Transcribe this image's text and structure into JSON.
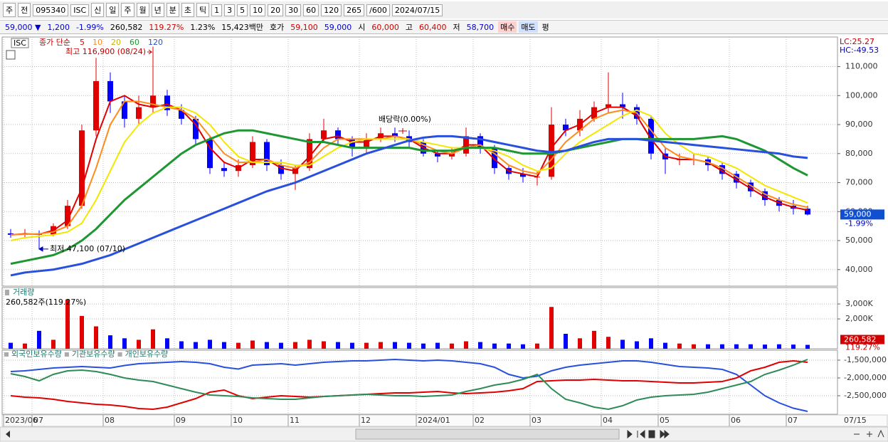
{
  "toolbar": {
    "items": [
      "주",
      "전",
      "095340",
      "ISC",
      "신",
      "일",
      "주",
      "월",
      "년",
      "분",
      "초",
      "틱",
      "1",
      "3",
      "5",
      "10",
      "20",
      "30",
      "60",
      "120",
      "265",
      "/600",
      "2024/07/15"
    ]
  },
  "quote_bar": {
    "items": [
      "59,000 ▼",
      "1,200",
      "-1.99%",
      "260,582",
      "119.27%",
      "1.23%",
      "15,423백만",
      "호가",
      "59,100",
      "59,000",
      "시",
      "60,000",
      "고",
      "60,400",
      "저",
      "58,700",
      "매수",
      "매도",
      "평"
    ]
  },
  "chart_data": [
    {
      "type": "candlestick",
      "title": "ISC",
      "legend_label": "종가 단순",
      "categories": [
        "2023/06",
        null,
        "07",
        null,
        null,
        null,
        null,
        "08",
        null,
        null,
        null,
        null,
        "09",
        null,
        null,
        null,
        "10",
        null,
        null,
        null,
        "11",
        null,
        null,
        null,
        null,
        "12",
        null,
        null,
        null,
        "2024/01",
        null,
        null,
        null,
        "02",
        null,
        null,
        null,
        "03",
        null,
        null,
        null,
        null,
        "04",
        null,
        null,
        null,
        "05",
        null,
        null,
        null,
        null,
        "06",
        null,
        null,
        null,
        "07",
        null
      ],
      "last_x_label": "07/15",
      "open": [
        52500,
        52000,
        52500,
        52000,
        55000,
        62000,
        88000,
        105000,
        98000,
        92000,
        96000,
        100000,
        95000,
        92000,
        85000,
        75000,
        74000,
        76000,
        84000,
        76000,
        73000,
        75000,
        85000,
        88000,
        85000,
        82000,
        85000,
        87000,
        86000,
        84000,
        80000,
        79000,
        80000,
        86000,
        82000,
        75000,
        73000,
        72000,
        72000,
        90000,
        88000,
        92000,
        96000,
        97000,
        96000,
        92000,
        80000,
        78000,
        78000,
        78000,
        76000,
        73000,
        70000,
        67000,
        64000,
        62000,
        61000
      ],
      "high": [
        54000,
        54000,
        53500,
        56000,
        64000,
        90000,
        113000,
        108000,
        100000,
        100000,
        116900,
        102000,
        97000,
        93000,
        86000,
        77000,
        78000,
        86000,
        85000,
        78000,
        76000,
        87000,
        92000,
        89000,
        86000,
        87000,
        89000,
        89000,
        88000,
        85000,
        81000,
        82000,
        89000,
        87000,
        83000,
        76000,
        75000,
        74000,
        96000,
        92000,
        95000,
        98000,
        108000,
        101000,
        97000,
        93000,
        82000,
        80000,
        80000,
        79000,
        77000,
        74000,
        71000,
        68000,
        65000,
        64000,
        62000
      ],
      "low": [
        51000,
        51000,
        47100,
        51500,
        54000,
        61000,
        86000,
        94000,
        89000,
        90000,
        94000,
        93000,
        90000,
        83000,
        73000,
        72000,
        72000,
        75000,
        74000,
        71000,
        67500,
        74000,
        84000,
        83000,
        79000,
        80000,
        84000,
        84000,
        82000,
        79000,
        77000,
        78000,
        79000,
        80000,
        73000,
        71000,
        70000,
        69000,
        71000,
        86000,
        86000,
        91000,
        94000,
        92000,
        90000,
        78000,
        73000,
        76000,
        76000,
        74000,
        71000,
        68000,
        65000,
        62000,
        60000,
        59000,
        58700
      ],
      "close": [
        52000,
        52500,
        52000,
        55000,
        62000,
        88000,
        105000,
        98000,
        92000,
        96000,
        100000,
        95000,
        92000,
        85000,
        75000,
        74000,
        76000,
        84000,
        76000,
        73000,
        75000,
        85000,
        88000,
        85000,
        82000,
        85000,
        87000,
        86000,
        84000,
        80000,
        79000,
        80000,
        86000,
        82000,
        75000,
        73000,
        72000,
        72000,
        90000,
        88000,
        92000,
        96000,
        97000,
        96000,
        92000,
        80000,
        78000,
        78000,
        78000,
        76000,
        73000,
        70000,
        67000,
        64000,
        62000,
        61000,
        59000
      ],
      "up_color": "#e00000",
      "down_color": "#0000ff",
      "series": [
        {
          "name": "5",
          "color": "#e00000",
          "values": [
            52000,
            52300,
            52200,
            53500,
            57000,
            68000,
            85000,
            98000,
            100000,
            97000,
            96000,
            97000,
            95000,
            90000,
            82000,
            77000,
            75000,
            78000,
            78000,
            75000,
            74000,
            79000,
            85000,
            86000,
            84000,
            84000,
            86000,
            86000,
            85000,
            82000,
            80000,
            80000,
            83000,
            83000,
            78000,
            74000,
            73000,
            72000,
            82000,
            88000,
            90000,
            94000,
            96000,
            96000,
            93000,
            85000,
            79000,
            78000,
            78000,
            77000,
            74000,
            71000,
            68000,
            65000,
            63000,
            61500,
            60500
          ]
        },
        {
          "name": "10",
          "color": "#ff8c1a",
          "values": [
            52000,
            52200,
            52300,
            53000,
            55000,
            62000,
            75000,
            90000,
            98000,
            98000,
            97000,
            96000,
            95000,
            92000,
            86000,
            80000,
            77000,
            77000,
            78000,
            76000,
            75000,
            77000,
            82000,
            85000,
            85000,
            85000,
            85000,
            86000,
            85000,
            83000,
            81000,
            80000,
            82000,
            83000,
            80000,
            76000,
            74000,
            73000,
            78000,
            84000,
            88000,
            92000,
            94000,
            95000,
            94000,
            88000,
            82000,
            79000,
            78000,
            77000,
            75000,
            72000,
            69000,
            66000,
            64000,
            62500,
            61500
          ]
        },
        {
          "name": "20",
          "color": "#f5e600",
          "values": [
            50000,
            51000,
            51500,
            52000,
            53000,
            56000,
            64000,
            74000,
            84000,
            90000,
            94000,
            96000,
            96000,
            94000,
            90000,
            84000,
            79000,
            77000,
            77000,
            77000,
            76000,
            76000,
            79000,
            82000,
            84000,
            85000,
            85000,
            85000,
            85000,
            84000,
            83000,
            82000,
            82000,
            82000,
            81000,
            79000,
            76000,
            74000,
            75000,
            80000,
            84000,
            87000,
            90000,
            93000,
            95000,
            93000,
            87000,
            83000,
            80000,
            79000,
            77000,
            75000,
            72000,
            69000,
            67000,
            65000,
            63000
          ]
        },
        {
          "name": "60",
          "color": "#1e9632",
          "values": [
            42000,
            43000,
            44000,
            45000,
            47000,
            50000,
            54000,
            59000,
            64000,
            68000,
            72000,
            76000,
            80000,
            83000,
            85000,
            87000,
            88000,
            88000,
            87000,
            86000,
            85000,
            84000,
            84000,
            83000,
            82000,
            82000,
            82000,
            82000,
            82000,
            81000,
            81000,
            81000,
            82000,
            82000,
            82000,
            81000,
            80000,
            80000,
            80000,
            81000,
            82000,
            83000,
            84000,
            85000,
            85000,
            85000,
            85000,
            85000,
            85000,
            85500,
            86000,
            85000,
            83000,
            81000,
            78000,
            75000,
            72500
          ]
        },
        {
          "name": "120",
          "color": "#2850dc",
          "values": [
            38000,
            39000,
            39500,
            40000,
            41000,
            42000,
            43500,
            45000,
            47000,
            49000,
            51000,
            53000,
            55000,
            57000,
            59000,
            61000,
            63000,
            65000,
            67000,
            68500,
            70000,
            72000,
            74000,
            76000,
            78000,
            80000,
            81500,
            83000,
            84500,
            85500,
            86000,
            86000,
            85500,
            85000,
            84000,
            83000,
            82000,
            81000,
            80500,
            81000,
            82500,
            84000,
            85000,
            85000,
            85000,
            84500,
            84000,
            83500,
            83000,
            82500,
            82000,
            81500,
            81000,
            80500,
            80000,
            79000,
            78500
          ]
        }
      ],
      "ylim": [
        34300,
        120200
      ],
      "yticks": [
        {
          "value": 40000,
          "label": "40,000"
        },
        {
          "value": 50000,
          "label": "50,000"
        },
        {
          "value": 60000,
          "label": "60,000"
        },
        {
          "value": 70000,
          "label": "70,000"
        },
        {
          "value": 80000,
          "label": "80,000"
        },
        {
          "value": 90000,
          "label": "90,000"
        },
        {
          "value": 100000,
          "label": "100,000"
        },
        {
          "value": 110000,
          "label": "110,000"
        }
      ],
      "grid": true,
      "high_annotation": "최고 116,900 (08/24)",
      "low_annotation": "최저 47,100 (07/10)",
      "dividend_annotation": "배당락(0.00%)",
      "lc_label": "LC:25.27",
      "hc_label": "HC:-49.53",
      "last_price_label": "59,000",
      "last_change_label": "-1.99%"
    },
    {
      "type": "bar",
      "title": "거래량",
      "subtitle": "260,582주(119.27%)",
      "values": [
        400000,
        350000,
        1200000,
        600000,
        3300000,
        2200000,
        1500000,
        900000,
        700000,
        600000,
        1300000,
        700000,
        500000,
        450000,
        600000,
        450000,
        400000,
        550000,
        450000,
        400000,
        450000,
        600000,
        500000,
        450000,
        400000,
        400000,
        450000,
        450000,
        400000,
        350000,
        400000,
        350000,
        500000,
        450000,
        350000,
        350000,
        300000,
        350000,
        2800000,
        1000000,
        700000,
        1200000,
        800000,
        600000,
        500000,
        700000,
        400000,
        350000,
        300000,
        300000,
        300000,
        300000,
        300000,
        280000,
        300000,
        280000,
        260582
      ],
      "value_labels": [
        null,
        null,
        null,
        null,
        null,
        null,
        null,
        null,
        null,
        null,
        null,
        null,
        null,
        null,
        null,
        null,
        null,
        null,
        null,
        null,
        null,
        null,
        null,
        null,
        null,
        null,
        null,
        null,
        null,
        null,
        null,
        null,
        null,
        null,
        null,
        null,
        null,
        null,
        null,
        null,
        null,
        null,
        null,
        null,
        null,
        null,
        null,
        null,
        null,
        null,
        null,
        null,
        null,
        null,
        null,
        null,
        "260,582"
      ],
      "last_ratio_label": "119.27%",
      "ylim": [
        0,
        4100000
      ],
      "yticks": [
        {
          "value": 2000000,
          "label": "2,000K"
        },
        {
          "value": 3000000,
          "label": "3,000K"
        }
      ],
      "grid": true
    },
    {
      "type": "line",
      "series": [
        {
          "name": "외국인보유수량",
          "color": "#2850dc",
          "values": [
            -1820000,
            -1800000,
            -1760000,
            -1720000,
            -1700000,
            -1680000,
            -1700000,
            -1720000,
            -1650000,
            -1600000,
            -1580000,
            -1560000,
            -1540000,
            -1560000,
            -1600000,
            -1700000,
            -1750000,
            -1640000,
            -1620000,
            -1600000,
            -1640000,
            -1600000,
            -1560000,
            -1540000,
            -1520000,
            -1520000,
            -1500000,
            -1480000,
            -1500000,
            -1520000,
            -1500000,
            -1520000,
            -1560000,
            -1600000,
            -1700000,
            -1900000,
            -2000000,
            -1950000,
            -1800000,
            -1700000,
            -1640000,
            -1600000,
            -1560000,
            -1520000,
            -1520000,
            -1560000,
            -1620000,
            -1680000,
            -1700000,
            -1720000,
            -1760000,
            -1900000,
            -2200000,
            -2500000,
            -2700000,
            -2850000,
            -2940000
          ]
        },
        {
          "name": "기관보유수량",
          "color": "#e00000",
          "values": [
            -2500000,
            -2540000,
            -2560000,
            -2600000,
            -2660000,
            -2700000,
            -2740000,
            -2760000,
            -2800000,
            -2860000,
            -2880000,
            -2820000,
            -2700000,
            -2580000,
            -2400000,
            -2340000,
            -2500000,
            -2580000,
            -2540000,
            -2500000,
            -2520000,
            -2540000,
            -2520000,
            -2500000,
            -2480000,
            -2460000,
            -2440000,
            -2420000,
            -2420000,
            -2400000,
            -2380000,
            -2420000,
            -2440000,
            -2420000,
            -2400000,
            -2360000,
            -2300000,
            -2100000,
            -2080000,
            -2060000,
            -2060000,
            -2040000,
            -2060000,
            -2080000,
            -2080000,
            -2100000,
            -2120000,
            -2140000,
            -2140000,
            -2120000,
            -2100000,
            -2000000,
            -1800000,
            -1700000,
            -1560000,
            -1520000,
            -1560000
          ]
        },
        {
          "name": "개인보유수량",
          "color": "#2e8b57",
          "values": [
            -1880000,
            -1960000,
            -2080000,
            -1900000,
            -1800000,
            -1780000,
            -1820000,
            -1900000,
            -2000000,
            -2060000,
            -2100000,
            -2200000,
            -2300000,
            -2400000,
            -2480000,
            -2500000,
            -2520000,
            -2560000,
            -2580000,
            -2600000,
            -2600000,
            -2560000,
            -2520000,
            -2500000,
            -2480000,
            -2460000,
            -2480000,
            -2500000,
            -2500000,
            -2520000,
            -2500000,
            -2480000,
            -2380000,
            -2300000,
            -2200000,
            -2140000,
            -2040000,
            -1900000,
            -2300000,
            -2600000,
            -2700000,
            -2820000,
            -2880000,
            -2780000,
            -2620000,
            -2540000,
            -2500000,
            -2480000,
            -2460000,
            -2400000,
            -2300000,
            -2200000,
            -2100000,
            -1900000,
            -1780000,
            -1640000,
            -1480000
          ]
        }
      ],
      "ylim": [
        -3020000,
        -1220000
      ],
      "yticks": [
        {
          "value": -2500000,
          "label": "-2,500,000"
        },
        {
          "value": -2000000,
          "label": "-2,000,000"
        },
        {
          "value": -1500000,
          "label": "-1,500,000"
        }
      ],
      "grid": true
    }
  ]
}
